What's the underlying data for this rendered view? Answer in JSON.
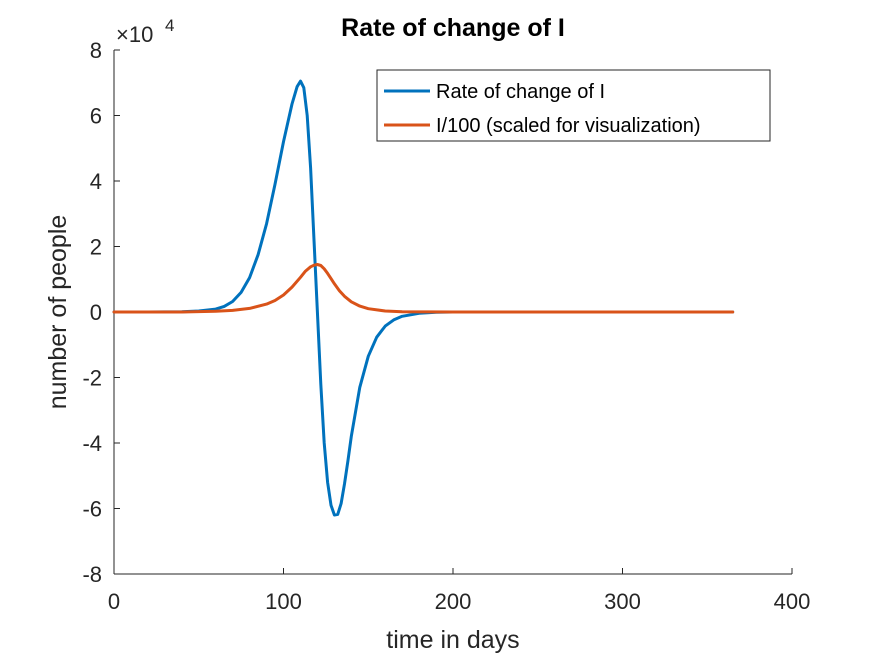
{
  "chart_data": {
    "type": "line",
    "title": "Rate of change of I",
    "xlabel": "time in days",
    "ylabel": "number of people",
    "exponent_label": {
      "base": "×10",
      "power": "4"
    },
    "xlim": [
      0,
      400
    ],
    "ylim": [
      -80000,
      80000
    ],
    "x_ticks": [
      0,
      100,
      200,
      300,
      400
    ],
    "x_tick_labels": [
      "0",
      "100",
      "200",
      "300",
      "400"
    ],
    "y_ticks": [
      -80000,
      -60000,
      -40000,
      -20000,
      0,
      20000,
      40000,
      60000,
      80000
    ],
    "y_tick_labels": [
      "-8",
      "-6",
      "-4",
      "-2",
      "0",
      "2",
      "4",
      "6",
      "8"
    ],
    "grid": false,
    "legend_position": "top-right",
    "series": [
      {
        "name": "Rate of change of I",
        "color": "#0072BD",
        "points": [
          [
            0,
            0
          ],
          [
            20,
            0
          ],
          [
            40,
            100
          ],
          [
            50,
            300
          ],
          [
            60,
            900
          ],
          [
            65,
            1700
          ],
          [
            70,
            3200
          ],
          [
            75,
            6000
          ],
          [
            80,
            10500
          ],
          [
            85,
            17500
          ],
          [
            90,
            27000
          ],
          [
            95,
            39000
          ],
          [
            100,
            52000
          ],
          [
            105,
            63500
          ],
          [
            108,
            68800
          ],
          [
            110,
            70500
          ],
          [
            112,
            68500
          ],
          [
            114,
            60000
          ],
          [
            116,
            44000
          ],
          [
            118,
            22000
          ],
          [
            120,
            0
          ],
          [
            122,
            -22000
          ],
          [
            124,
            -40000
          ],
          [
            126,
            -52000
          ],
          [
            128,
            -59000
          ],
          [
            130,
            -62000
          ],
          [
            132,
            -61800
          ],
          [
            134,
            -58500
          ],
          [
            136,
            -52500
          ],
          [
            138,
            -45500
          ],
          [
            140,
            -38000
          ],
          [
            145,
            -23000
          ],
          [
            150,
            -13500
          ],
          [
            155,
            -7700
          ],
          [
            160,
            -4300
          ],
          [
            165,
            -2400
          ],
          [
            170,
            -1300
          ],
          [
            180,
            -400
          ],
          [
            190,
            -100
          ],
          [
            200,
            0
          ],
          [
            250,
            0
          ],
          [
            300,
            0
          ],
          [
            365,
            0
          ]
        ]
      },
      {
        "name": "I/100 (scaled for visualization)",
        "color": "#D95319",
        "points": [
          [
            0,
            0
          ],
          [
            40,
            0
          ],
          [
            60,
            200
          ],
          [
            70,
            500
          ],
          [
            80,
            1100
          ],
          [
            90,
            2400
          ],
          [
            95,
            3500
          ],
          [
            100,
            5200
          ],
          [
            105,
            7600
          ],
          [
            110,
            10600
          ],
          [
            113,
            12500
          ],
          [
            116,
            13800
          ],
          [
            118,
            14300
          ],
          [
            120,
            14500
          ],
          [
            122,
            14200
          ],
          [
            124,
            13200
          ],
          [
            126,
            11800
          ],
          [
            128,
            10200
          ],
          [
            130,
            8600
          ],
          [
            133,
            6500
          ],
          [
            136,
            4800
          ],
          [
            140,
            3100
          ],
          [
            145,
            1800
          ],
          [
            150,
            1000
          ],
          [
            160,
            300
          ],
          [
            170,
            100
          ],
          [
            200,
            0
          ],
          [
            300,
            0
          ],
          [
            365,
            0
          ]
        ]
      }
    ]
  }
}
